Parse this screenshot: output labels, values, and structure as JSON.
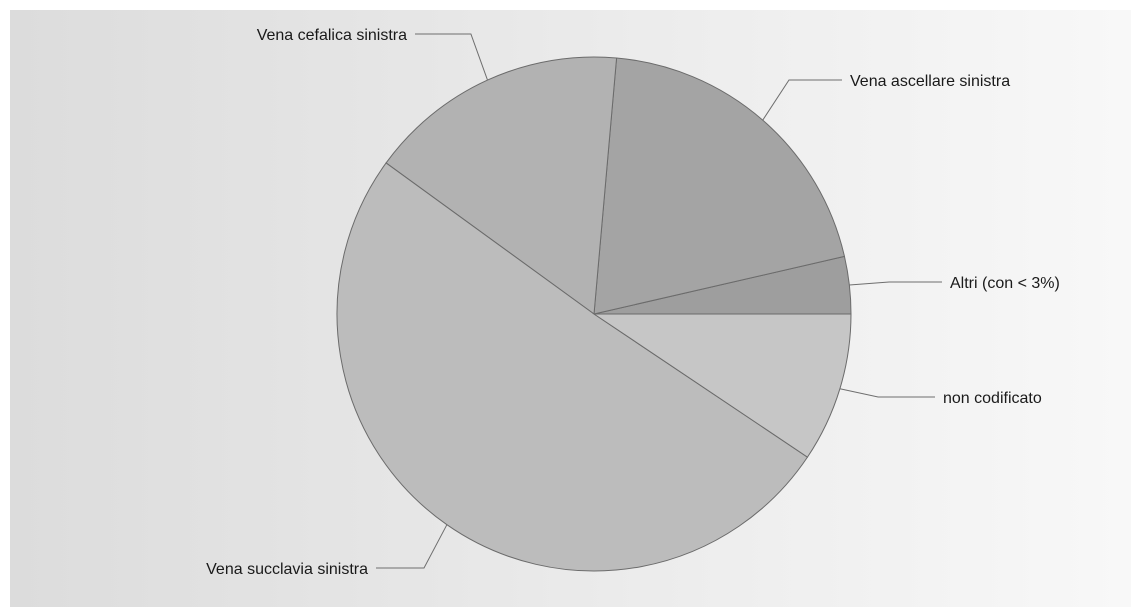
{
  "chart_data": {
    "type": "pie",
    "title": "",
    "slices": [
      {
        "label": "Altri (con < 3%)",
        "value": 3.6,
        "color": "#9e9e9e",
        "label_side": "right"
      },
      {
        "label": "Vena ascellare sinistra",
        "value": 20.0,
        "color": "#a4a4a4",
        "label_side": "right"
      },
      {
        "label": "Vena cefalica sinistra",
        "value": 16.4,
        "color": "#b2b2b2",
        "label_side": "left"
      },
      {
        "label": "Vena succlavia sinistra",
        "value": 50.6,
        "color": "#bcbcbc",
        "label_side": "left"
      },
      {
        "label": "non codificato",
        "value": 9.4,
        "color": "#c6c6c6",
        "label_side": "right"
      }
    ],
    "start_angle_deg": 0,
    "direction": "counterclockwise",
    "legend": "none",
    "background": {
      "gradient_from": "#dcdcdc",
      "gradient_to": "#f8f8f8"
    }
  }
}
